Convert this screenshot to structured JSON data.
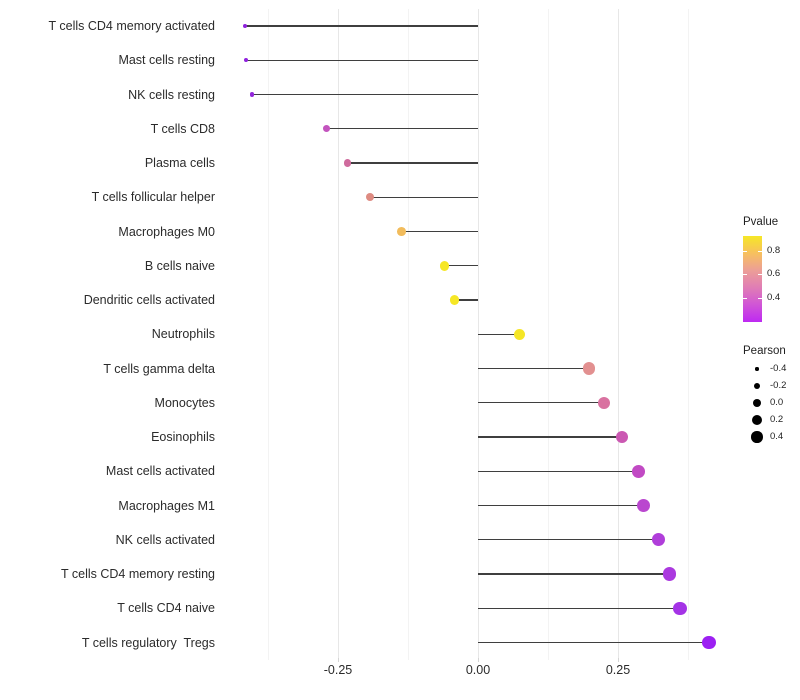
{
  "chart_data": {
    "type": "scatter",
    "subtype": "horizontal-lollipop",
    "title": "",
    "xlabel": "",
    "ylabel": "",
    "grid": "vertical-only",
    "legend_position": "right",
    "xlim": [
      -0.457,
      0.454
    ],
    "categories": [
      "T cells CD4 memory activated",
      "Mast cells resting",
      "NK cells resting",
      "T cells CD8",
      "Plasma cells",
      "T cells follicular helper",
      "Macrophages M0",
      "B cells naive",
      "Dendritic cells activated",
      "Neutrophils",
      "T cells gamma delta",
      "Monocytes",
      "Eosinophils",
      "Mast cells activated",
      "Macrophages M1",
      "NK cells activated",
      "T cells CD4 memory resting",
      "T cells CD4 naive",
      "T cells regulatory  Tregs"
    ],
    "series": [
      {
        "name": "Pearson",
        "values": [
          -0.416,
          -0.415,
          -0.404,
          -0.27,
          -0.233,
          -0.193,
          -0.136,
          -0.06,
          -0.042,
          0.074,
          0.199,
          0.225,
          0.257,
          0.286,
          0.295,
          0.322,
          0.342,
          0.361,
          0.413
        ]
      }
    ],
    "point_colors": [
      "#9022DE",
      "#9022DE",
      "#9327DB",
      "#C354BE",
      "#CF6B9D",
      "#DE8B82",
      "#F2BC5C",
      "#F6E726",
      "#F6E726",
      "#F5E626",
      "#E29090",
      "#D972A0",
      "#CB58B2",
      "#C14AC4",
      "#BA47CF",
      "#B03EDA",
      "#AB39DF",
      "#A433E6",
      "#9C20F2"
    ],
    "stem_color": "#3F3F3F",
    "x_ticks": [
      {
        "label": "-0.25",
        "value": -0.25
      },
      {
        "label": "0.00",
        "value": 0.0
      },
      {
        "label": "0.25",
        "value": 0.25
      }
    ],
    "x_minor_gridlines": [
      -0.375,
      -0.125,
      0.125,
      0.375
    ],
    "legends": {
      "color": {
        "title": "Pvalue",
        "ticks": [
          {
            "label": "0.8",
            "y": 251
          },
          {
            "label": "0.6",
            "y": 274
          },
          {
            "label": "0.4",
            "y": 298
          }
        ],
        "gradient_top_to_bottom": [
          "#F6E726",
          "#F7C05E",
          "#EC9E97",
          "#E07DB5",
          "#D055D6",
          "#BE29F2"
        ]
      },
      "size": {
        "title": "Pearson",
        "entries": [
          {
            "label": "-0.4",
            "value": -0.4
          },
          {
            "label": "-0.2",
            "value": -0.2
          },
          {
            "label": "0.0",
            "value": 0.0
          },
          {
            "label": "0.2",
            "value": 0.2
          },
          {
            "label": "0.4",
            "value": 0.4
          }
        ],
        "dot_color": "#000000"
      }
    }
  }
}
